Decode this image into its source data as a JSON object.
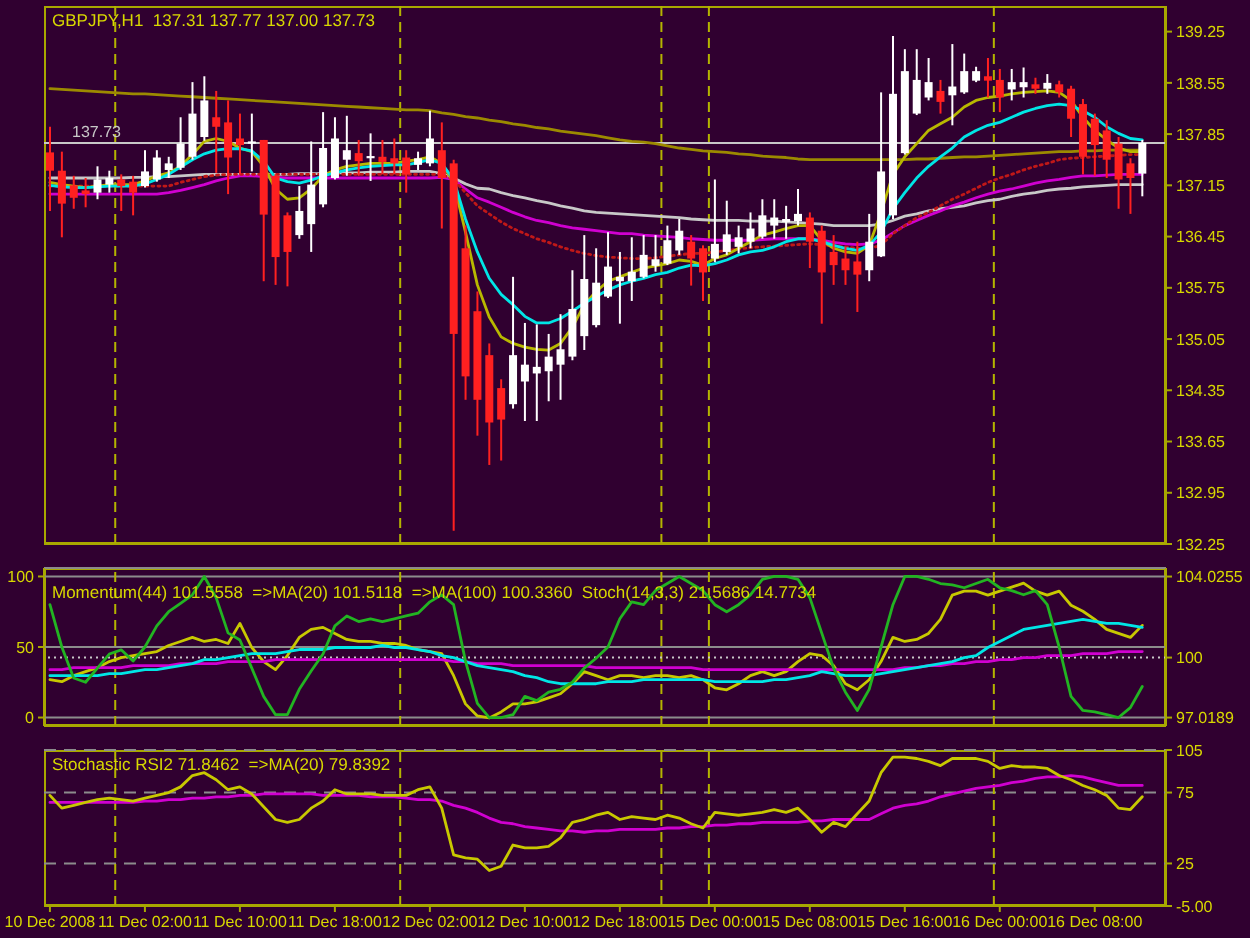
{
  "chart_data": [
    {
      "type": "candlestick",
      "title": "GBPJPY,H1  137.31 137.77 137.00 137.73",
      "tick_labels": "y",
      "categories": [
        null,
        null,
        null,
        null,
        null,
        null,
        null,
        null,
        null,
        null,
        null,
        null,
        null,
        null,
        null,
        null,
        null,
        null,
        null,
        null,
        null,
        null,
        null,
        null,
        null,
        null,
        null,
        null,
        null,
        null,
        null,
        null,
        null,
        null,
        null,
        null,
        null,
        null,
        null,
        null,
        null,
        null,
        null,
        null,
        null,
        null,
        null,
        null,
        null,
        null,
        null,
        null,
        null,
        null,
        null,
        null,
        null,
        null,
        null,
        null,
        null,
        null,
        null,
        null,
        null,
        null,
        null,
        null,
        null,
        null,
        null,
        null,
        null,
        null,
        null,
        null,
        null,
        null,
        null,
        null,
        null,
        null,
        null,
        null,
        null,
        null,
        null,
        null,
        null,
        null,
        null,
        null,
        null
      ],
      "ohlc": [
        [
          137.6,
          137.95,
          136.8,
          137.35
        ],
        [
          137.35,
          137.61,
          136.44,
          136.9
        ],
        [
          137.15,
          137.28,
          136.83,
          136.98
        ],
        [
          137.08,
          137.25,
          136.85,
          137.03
        ],
        [
          137.05,
          137.41,
          136.96,
          137.23
        ],
        [
          137.16,
          137.35,
          137.05,
          137.25
        ],
        [
          137.23,
          137.3,
          136.8,
          137.14
        ],
        [
          137.2,
          137.28,
          136.74,
          137.05
        ],
        [
          137.14,
          137.63,
          137.12,
          137.34
        ],
        [
          137.23,
          137.63,
          137.2,
          137.53
        ],
        [
          137.36,
          137.54,
          137.25,
          137.45
        ],
        [
          137.39,
          138.08,
          137.36,
          137.72
        ],
        [
          137.54,
          138.56,
          137.5,
          138.13
        ],
        [
          137.81,
          138.64,
          137.76,
          138.31
        ],
        [
          138.08,
          138.44,
          137.32,
          137.95
        ],
        [
          138.01,
          138.31,
          137.03,
          137.53
        ],
        [
          137.79,
          138.13,
          137.3,
          137.7
        ],
        [
          137.72,
          138.13,
          137.34,
          137.75
        ],
        [
          137.77,
          137.77,
          135.84,
          136.75
        ],
        [
          137.28,
          137.3,
          135.79,
          136.17
        ],
        [
          136.74,
          136.78,
          135.77,
          136.24
        ],
        [
          136.47,
          137.14,
          136.42,
          136.8
        ],
        [
          136.62,
          137.75,
          136.24,
          137.16
        ],
        [
          136.89,
          138.15,
          136.85,
          137.66
        ],
        [
          137.25,
          138.08,
          137.23,
          137.79
        ],
        [
          137.5,
          138.1,
          137.28,
          137.63
        ],
        [
          137.59,
          137.77,
          137.28,
          137.48
        ],
        [
          137.52,
          137.86,
          137.21,
          137.55
        ],
        [
          137.54,
          137.77,
          137.3,
          137.47
        ],
        [
          137.52,
          137.79,
          137.3,
          137.45
        ],
        [
          137.53,
          137.63,
          137.05,
          137.3
        ],
        [
          137.43,
          137.61,
          137.36,
          137.52
        ],
        [
          137.45,
          138.17,
          137.41,
          137.79
        ],
        [
          137.63,
          138.01,
          136.56,
          137.25
        ],
        [
          137.45,
          137.5,
          132.43,
          135.12
        ],
        [
          136.29,
          136.6,
          134.22,
          134.54
        ],
        [
          135.43,
          135.7,
          133.73,
          134.22
        ],
        [
          134.83,
          134.99,
          133.33,
          133.91
        ],
        [
          134.38,
          134.5,
          133.39,
          133.95
        ],
        [
          134.16,
          135.9,
          134.1,
          134.83
        ],
        [
          134.47,
          135.27,
          133.93,
          134.7
        ],
        [
          134.58,
          135.25,
          133.93,
          134.67
        ],
        [
          134.61,
          135.12,
          134.2,
          134.81
        ],
        [
          134.7,
          135.39,
          134.22,
          134.91
        ],
        [
          134.81,
          135.99,
          134.76,
          135.46
        ],
        [
          135.09,
          136.47,
          134.9,
          135.87
        ],
        [
          135.24,
          136.29,
          135.21,
          135.82
        ],
        [
          135.63,
          136.51,
          135.61,
          136.04
        ],
        [
          135.84,
          136.24,
          135.26,
          135.9
        ],
        [
          135.84,
          136.44,
          135.57,
          135.97
        ],
        [
          135.9,
          136.47,
          135.88,
          136.2
        ],
        [
          136.05,
          136.47,
          135.97,
          136.14
        ],
        [
          136.08,
          136.6,
          136.06,
          136.4
        ],
        [
          136.26,
          136.69,
          136.2,
          136.53
        ],
        [
          136.38,
          136.47,
          135.78,
          136.15
        ],
        [
          136.29,
          136.33,
          135.57,
          135.96
        ],
        [
          136.15,
          137.23,
          136.1,
          136.35
        ],
        [
          136.24,
          136.94,
          136.2,
          136.48
        ],
        [
          136.31,
          136.6,
          136.22,
          136.44
        ],
        [
          136.38,
          136.78,
          136.29,
          136.56
        ],
        [
          136.45,
          136.96,
          136.42,
          136.74
        ],
        [
          136.6,
          136.96,
          136.42,
          136.71
        ],
        [
          136.65,
          136.87,
          136.42,
          136.69
        ],
        [
          136.66,
          137.1,
          136.6,
          136.76
        ],
        [
          136.71,
          136.78,
          136.02,
          136.38
        ],
        [
          136.53,
          136.6,
          135.26,
          135.96
        ],
        [
          136.24,
          136.47,
          135.79,
          136.06
        ],
        [
          136.15,
          136.31,
          135.79,
          135.99
        ],
        [
          136.11,
          136.38,
          135.42,
          135.93
        ],
        [
          135.99,
          136.76,
          135.84,
          136.38
        ],
        [
          136.18,
          138.42,
          136.17,
          137.34
        ],
        [
          136.74,
          139.19,
          136.69,
          138.4
        ],
        [
          137.59,
          139.01,
          137.57,
          138.71
        ],
        [
          138.13,
          139.01,
          138.11,
          138.59
        ],
        [
          138.35,
          138.89,
          138.31,
          138.56
        ],
        [
          138.44,
          138.59,
          138.13,
          138.29
        ],
        [
          138.38,
          139.08,
          137.97,
          138.5
        ],
        [
          138.42,
          138.95,
          138.4,
          138.71
        ],
        [
          138.58,
          138.77,
          138.56,
          138.71
        ],
        [
          138.64,
          138.89,
          138.35,
          138.58
        ],
        [
          138.59,
          138.74,
          138.15,
          138.35
        ],
        [
          138.46,
          138.74,
          138.31,
          138.56
        ],
        [
          138.49,
          138.76,
          138.35,
          138.56
        ],
        [
          138.53,
          138.62,
          138.4,
          138.47
        ],
        [
          138.47,
          138.67,
          138.4,
          138.55
        ],
        [
          138.53,
          138.58,
          138.35,
          138.42
        ],
        [
          138.47,
          138.51,
          137.81,
          138.06
        ],
        [
          138.26,
          138.33,
          137.3,
          137.54
        ],
        [
          138.06,
          138.13,
          137.28,
          137.7
        ],
        [
          137.9,
          138.04,
          137.25,
          137.5
        ],
        [
          137.72,
          137.81,
          136.83,
          137.23
        ],
        [
          137.45,
          137.52,
          136.76,
          137.25
        ],
        [
          137.31,
          137.77,
          137.0,
          137.73
        ]
      ],
      "colors": [
        "#ff2020",
        "#ff2020",
        "#ff2020",
        "#ff2020",
        "#ffffff",
        "#ffffff",
        "#ff2020",
        "#ff2020",
        "#ffffff",
        "#ffffff",
        "#ffffff",
        "#ffffff",
        "#ffffff",
        "#ffffff",
        "#ff2020",
        "#ff2020",
        "#ff2020",
        "#ffffff",
        "#ff2020",
        "#ff2020",
        "#ff2020",
        "#ffffff",
        "#ffffff",
        "#ffffff",
        "#ffffff",
        "#ffffff",
        "#ff2020",
        "#ffffff",
        "#ff2020",
        "#ff2020",
        "#ff2020",
        "#ffffff",
        "#ffffff",
        "#ff2020",
        "#ff2020",
        "#ff2020",
        "#ff2020",
        "#ff2020",
        "#ff2020",
        "#ffffff",
        "#ffffff",
        "#ffffff",
        "#ffffff",
        "#ffffff",
        "#ffffff",
        "#ffffff",
        "#ffffff",
        "#ffffff",
        "#ffffff",
        "#ffffff",
        "#ffffff",
        "#ffffff",
        "#ffffff",
        "#ffffff",
        "#ff2020",
        "#ff2020",
        "#ffffff",
        "#ffffff",
        "#ffffff",
        "#ffffff",
        "#ffffff",
        "#ffffff",
        "#ffffff",
        "#ffffff",
        "#ff2020",
        "#ff2020",
        "#ff2020",
        "#ff2020",
        "#ff2020",
        "#ffffff",
        "#ffffff",
        "#ffffff",
        "#ffffff",
        "#ffffff",
        "#ffffff",
        "#ff2020",
        "#ffffff",
        "#ffffff",
        "#ffffff",
        "#ff2020",
        "#ff2020",
        "#ffffff",
        "#ffffff",
        "#ff2020",
        "#ffffff",
        "#ff2020",
        "#ff2020",
        "#ff2020",
        "#ff2020",
        "#ff2020",
        "#ff2020",
        "#ff2020",
        "#ffffff"
      ],
      "series": [
        {
          "type": "line",
          "color": "#9c8a00",
          "values": [
            138.47,
            138.46,
            138.45,
            138.44,
            138.43,
            138.42,
            138.41,
            138.4,
            138.4,
            138.39,
            138.38,
            138.37,
            138.36,
            138.35,
            138.34,
            138.33,
            138.32,
            138.31,
            138.3,
            138.29,
            138.28,
            138.27,
            138.26,
            138.25,
            138.24,
            138.23,
            138.22,
            138.21,
            138.2,
            138.19,
            138.18,
            138.18,
            138.17,
            138.14,
            138.12,
            138.09,
            138.07,
            138.04,
            138.02,
            137.99,
            137.97,
            137.94,
            137.92,
            137.89,
            137.87,
            137.85,
            137.83,
            137.8,
            137.77,
            137.75,
            137.74,
            137.72,
            137.69,
            137.66,
            137.64,
            137.62,
            137.61,
            137.6,
            137.58,
            137.57,
            137.55,
            137.54,
            137.53,
            137.51,
            137.5,
            137.5,
            137.5,
            137.5,
            137.5,
            137.5,
            137.5,
            137.5,
            137.5,
            137.51,
            137.51,
            137.52,
            137.53,
            137.54,
            137.54,
            137.55,
            137.56,
            137.57,
            137.58,
            137.59,
            137.6,
            137.61,
            137.61,
            137.62,
            137.62,
            137.63,
            137.63,
            137.63,
            137.63
          ]
        },
        {
          "type": "line",
          "color": "#c8c8c8",
          "values": [
            137.25,
            137.25,
            137.25,
            137.25,
            137.25,
            137.25,
            137.25,
            137.26,
            137.26,
            137.27,
            137.27,
            137.28,
            137.29,
            137.3,
            137.3,
            137.3,
            137.3,
            137.3,
            137.3,
            137.3,
            137.3,
            137.31,
            137.31,
            137.31,
            137.32,
            137.32,
            137.32,
            137.33,
            137.33,
            137.33,
            137.34,
            137.34,
            137.34,
            137.31,
            137.25,
            137.17,
            137.11,
            137.1,
            137.05,
            137.01,
            136.98,
            136.94,
            136.91,
            136.87,
            136.84,
            136.8,
            136.78,
            136.77,
            136.76,
            136.75,
            136.74,
            136.73,
            136.72,
            136.71,
            136.69,
            136.68,
            136.67,
            136.67,
            136.67,
            136.66,
            136.66,
            136.66,
            136.65,
            136.64,
            136.63,
            136.62,
            136.6,
            136.6,
            136.6,
            136.6,
            136.62,
            136.67,
            136.73,
            136.76,
            136.8,
            136.83,
            136.85,
            136.87,
            136.91,
            136.94,
            136.96,
            137.0,
            137.03,
            137.05,
            137.08,
            137.1,
            137.11,
            137.13,
            137.14,
            137.15,
            137.16,
            137.16,
            137.16
          ]
        },
        {
          "type": "line",
          "color": "#d000d0",
          "values": [
            137.03,
            137.03,
            137.03,
            137.03,
            137.03,
            137.03,
            137.03,
            137.03,
            137.03,
            137.03,
            137.05,
            137.08,
            137.12,
            137.16,
            137.21,
            137.25,
            137.28,
            137.28,
            137.27,
            137.26,
            137.25,
            137.25,
            137.25,
            137.25,
            137.25,
            137.25,
            137.25,
            137.25,
            137.25,
            137.25,
            137.25,
            137.25,
            137.25,
            137.26,
            137.23,
            137.1,
            136.98,
            136.92,
            136.85,
            136.78,
            136.72,
            136.67,
            136.64,
            136.6,
            136.57,
            136.55,
            136.53,
            136.51,
            136.49,
            136.49,
            136.47,
            136.46,
            136.45,
            136.44,
            136.42,
            136.41,
            136.4,
            136.4,
            136.4,
            136.4,
            136.41,
            136.42,
            136.42,
            136.42,
            136.42,
            136.4,
            136.37,
            136.35,
            136.34,
            136.35,
            136.4,
            136.5,
            136.6,
            136.67,
            136.74,
            136.8,
            136.87,
            136.92,
            136.98,
            137.03,
            137.07,
            137.1,
            137.14,
            137.18,
            137.21,
            137.23,
            137.26,
            137.28,
            137.28,
            137.29,
            137.3,
            137.3,
            137.3
          ]
        },
        {
          "type": "line",
          "color": "#c01818",
          "line_style": "dotted",
          "values": [
            137.14,
            137.14,
            137.14,
            137.14,
            137.14,
            137.14,
            137.14,
            137.14,
            137.14,
            137.14,
            137.14,
            137.19,
            137.23,
            137.27,
            137.29,
            137.3,
            137.3,
            137.3,
            137.3,
            137.3,
            137.3,
            137.3,
            137.3,
            137.3,
            137.3,
            137.3,
            137.3,
            137.3,
            137.3,
            137.3,
            137.3,
            137.3,
            137.3,
            137.3,
            137.23,
            137.05,
            136.87,
            136.76,
            136.65,
            136.56,
            136.49,
            136.42,
            136.37,
            136.31,
            136.26,
            136.22,
            136.19,
            136.17,
            136.16,
            136.15,
            136.15,
            136.16,
            136.18,
            136.2,
            136.22,
            136.22,
            136.24,
            136.26,
            136.28,
            136.3,
            136.31,
            136.32,
            136.33,
            136.34,
            136.35,
            136.34,
            136.32,
            136.31,
            136.29,
            136.29,
            136.33,
            136.49,
            136.6,
            136.71,
            136.78,
            136.87,
            136.96,
            137.03,
            137.11,
            137.19,
            137.25,
            137.3,
            137.36,
            137.41,
            137.45,
            137.5,
            137.52,
            137.53,
            137.54,
            137.55,
            137.56,
            137.57,
            137.57
          ]
        },
        {
          "type": "line",
          "color": "#b8b800",
          "values": [
            137.19,
            137.16,
            137.14,
            137.12,
            137.14,
            137.16,
            137.16,
            137.16,
            137.21,
            137.28,
            137.32,
            137.41,
            137.57,
            137.75,
            137.79,
            137.75,
            137.66,
            137.61,
            137.41,
            137.1,
            136.96,
            136.98,
            137.1,
            137.28,
            137.36,
            137.41,
            137.43,
            137.45,
            137.45,
            137.45,
            137.48,
            137.5,
            137.54,
            137.45,
            137.19,
            136.51,
            135.79,
            135.35,
            135.08,
            134.99,
            134.94,
            134.91,
            134.9,
            134.99,
            135.21,
            135.52,
            135.7,
            135.84,
            135.9,
            135.96,
            136.02,
            136.05,
            136.08,
            136.13,
            136.11,
            136.06,
            136.15,
            136.2,
            136.29,
            136.38,
            136.47,
            136.51,
            136.56,
            136.6,
            136.6,
            136.4,
            136.29,
            136.24,
            136.22,
            136.33,
            136.78,
            137.3,
            137.54,
            137.72,
            137.9,
            137.99,
            138.08,
            138.22,
            138.31,
            138.35,
            138.37,
            138.4,
            138.42,
            138.43,
            138.44,
            138.42,
            138.31,
            138.08,
            137.9,
            137.77,
            137.66,
            137.61,
            137.61
          ]
        },
        {
          "type": "line",
          "color": "#00e6e6",
          "values": [
            137.15,
            137.13,
            137.12,
            137.12,
            137.13,
            137.14,
            137.14,
            137.14,
            137.17,
            137.23,
            137.3,
            137.4,
            137.5,
            137.58,
            137.63,
            137.65,
            137.65,
            137.62,
            137.48,
            137.25,
            137.2,
            137.18,
            137.22,
            137.28,
            137.32,
            137.36,
            137.39,
            137.41,
            137.42,
            137.43,
            137.43,
            137.46,
            137.5,
            137.45,
            137.23,
            136.69,
            136.24,
            135.88,
            135.66,
            135.52,
            135.36,
            135.27,
            135.27,
            135.33,
            135.43,
            135.54,
            135.63,
            135.72,
            135.79,
            135.84,
            135.88,
            135.93,
            135.96,
            136.02,
            136.06,
            136.05,
            136.08,
            136.13,
            136.2,
            136.24,
            136.26,
            136.31,
            136.38,
            136.42,
            136.42,
            136.38,
            136.33,
            136.29,
            136.26,
            136.33,
            136.51,
            136.83,
            137.05,
            137.25,
            137.41,
            137.54,
            137.66,
            137.81,
            137.9,
            137.97,
            138.01,
            138.08,
            138.15,
            138.2,
            138.24,
            138.26,
            138.24,
            138.17,
            138.08,
            137.95,
            137.86,
            137.79,
            137.77
          ]
        }
      ],
      "ylim": [
        132.25,
        139.6
      ],
      "yticks": [
        132.25,
        132.95,
        133.65,
        134.35,
        135.05,
        135.75,
        136.45,
        137.15,
        137.85,
        138.55,
        139.25
      ],
      "ref_lines": [
        {
          "axis": "y",
          "value": 137.73,
          "label": "137.73",
          "color": "#c8c8c8"
        }
      ]
    },
    {
      "type": "line",
      "title": "Momentum(44) 101.5558  =>MA(20) 101.5118  =>MA(100) 100.3360  Stoch(14,3,3) 21.5686 14.7734",
      "tick_labels": "y",
      "grid": "y",
      "categories": [
        null,
        null,
        null,
        null,
        null,
        null,
        null,
        null,
        null,
        null,
        null,
        null,
        null,
        null,
        null,
        null,
        null,
        null,
        null,
        null,
        null,
        null,
        null,
        null,
        null,
        null,
        null,
        null,
        null,
        null,
        null,
        null,
        null,
        null,
        null,
        null,
        null,
        null,
        null,
        null,
        null,
        null,
        null,
        null,
        null,
        null,
        null,
        null,
        null,
        null,
        null,
        null,
        null,
        null,
        null,
        null,
        null,
        null,
        null,
        null,
        null,
        null,
        null,
        null,
        null,
        null,
        null,
        null,
        null,
        null,
        null,
        null,
        null,
        null,
        null,
        null,
        null,
        null,
        null,
        null,
        null,
        null,
        null,
        null,
        null,
        null,
        null,
        null,
        null,
        null,
        null,
        null,
        null
      ],
      "series": [
        {
          "color": "#c8c800",
          "axis": "y2",
          "values": [
            98.9,
            98.8,
            99.1,
            99.3,
            99.5,
            99.8,
            100.0,
            100.1,
            100.2,
            100.3,
            100.6,
            100.8,
            101.0,
            100.8,
            100.9,
            100.7,
            101.7,
            100.5,
            99.8,
            99.4,
            100.1,
            101.0,
            101.4,
            101.5,
            101.2,
            100.9,
            100.8,
            100.8,
            100.7,
            100.7,
            100.6,
            100.4,
            100.3,
            100.2,
            99.1,
            97.7,
            97.1,
            97.0,
            97.3,
            97.7,
            97.7,
            97.8,
            98.0,
            98.2,
            98.7,
            99.3,
            99.1,
            98.9,
            99.1,
            99.1,
            99.0,
            99.1,
            99.1,
            99.0,
            99.1,
            98.9,
            98.5,
            98.4,
            98.7,
            99.1,
            99.3,
            99.1,
            99.3,
            99.8,
            100.2,
            100.1,
            99.6,
            98.7,
            98.4,
            98.9,
            99.8,
            101.0,
            100.8,
            100.9,
            101.2,
            101.9,
            103.1,
            103.3,
            103.3,
            103.1,
            103.3,
            103.5,
            103.7,
            103.3,
            103.1,
            103.3,
            102.6,
            102.3,
            101.9,
            101.4,
            101.2,
            101.0,
            101.6
          ]
        },
        {
          "color": "#d000d0",
          "axis": "y2",
          "values": [
            99.4,
            99.4,
            99.5,
            99.5,
            99.5,
            99.5,
            99.5,
            99.6,
            99.6,
            99.6,
            99.6,
            99.7,
            99.7,
            99.7,
            99.7,
            99.8,
            99.8,
            99.8,
            99.8,
            99.9,
            99.9,
            99.9,
            99.9,
            99.9,
            99.9,
            99.9,
            99.9,
            99.9,
            99.9,
            99.9,
            99.9,
            99.9,
            99.9,
            99.9,
            99.8,
            99.8,
            99.7,
            99.7,
            99.7,
            99.6,
            99.6,
            99.6,
            99.6,
            99.6,
            99.6,
            99.6,
            99.5,
            99.5,
            99.5,
            99.5,
            99.5,
            99.5,
            99.5,
            99.5,
            99.5,
            99.4,
            99.4,
            99.4,
            99.4,
            99.4,
            99.4,
            99.4,
            99.4,
            99.4,
            99.4,
            99.4,
            99.4,
            99.4,
            99.4,
            99.4,
            99.4,
            99.4,
            99.5,
            99.5,
            99.6,
            99.6,
            99.7,
            99.7,
            99.8,
            99.8,
            99.9,
            99.9,
            100.0,
            100.0,
            100.1,
            100.1,
            100.1,
            100.2,
            100.2,
            100.2,
            100.3,
            100.3,
            100.3
          ]
        },
        {
          "color": "#00e6e6",
          "axis": "y2",
          "values": [
            99.1,
            99.1,
            99.1,
            99.1,
            99.1,
            99.2,
            99.2,
            99.3,
            99.4,
            99.4,
            99.5,
            99.6,
            99.7,
            99.9,
            99.9,
            100.0,
            100.1,
            100.2,
            100.2,
            100.2,
            100.3,
            100.4,
            100.4,
            100.4,
            100.5,
            100.5,
            100.5,
            100.5,
            100.6,
            100.5,
            100.5,
            100.4,
            100.3,
            100.1,
            100.0,
            99.8,
            99.6,
            99.5,
            99.4,
            99.3,
            99.1,
            99.0,
            98.8,
            98.7,
            98.7,
            98.7,
            98.7,
            98.8,
            98.8,
            98.8,
            98.9,
            98.9,
            98.9,
            98.9,
            98.9,
            98.9,
            98.8,
            98.8,
            98.8,
            98.8,
            98.8,
            98.9,
            98.9,
            99.0,
            99.1,
            99.3,
            99.2,
            99.1,
            99.1,
            99.1,
            99.2,
            99.3,
            99.4,
            99.5,
            99.6,
            99.7,
            99.8,
            100.0,
            100.1,
            100.5,
            100.8,
            101.1,
            101.4,
            101.5,
            101.6,
            101.7,
            101.8,
            101.9,
            101.8,
            101.7,
            101.7,
            101.6,
            101.5
          ]
        },
        {
          "color": "#22b422",
          "values": [
            80,
            50,
            28,
            25,
            35,
            45,
            48,
            40,
            50,
            65,
            75,
            81,
            87,
            100,
            85,
            60,
            55,
            35,
            15,
            2,
            2,
            20,
            33,
            45,
            65,
            72,
            68,
            70,
            68,
            70,
            72,
            74,
            82,
            87,
            80,
            40,
            10,
            0,
            0,
            2,
            15,
            12,
            18,
            20,
            25,
            35,
            42,
            50,
            70,
            82,
            80,
            90,
            95,
            100,
            95,
            90,
            80,
            75,
            80,
            87,
            98,
            100,
            100,
            98,
            85,
            60,
            35,
            18,
            5,
            20,
            50,
            80,
            100,
            100,
            98,
            95,
            94,
            92,
            95,
            98,
            92,
            90,
            87,
            90,
            80,
            50,
            15,
            5,
            4,
            2,
            0,
            7,
            22
          ]
        }
      ],
      "ylim": [
        -6,
        106
      ],
      "yticks": [
        0,
        50,
        100
      ],
      "y2lim": [
        96.6,
        104.45
      ],
      "y2ticks": [
        97.0189,
        100,
        104.0255
      ],
      "ref_lines": [
        {
          "axis": "y2",
          "value": 100,
          "color": "#c8c8c8",
          "line_style": "dotted"
        }
      ]
    },
    {
      "type": "line",
      "title": "Stochastic RSI2 71.8462  =>MA(20) 79.8392",
      "grid": "y",
      "categories": [
        "10 Dec 2008",
        null,
        null,
        null,
        null,
        null,
        null,
        null,
        "11 Dec 02:00",
        null,
        null,
        null,
        null,
        null,
        null,
        null,
        "11 Dec 10:00",
        null,
        null,
        null,
        null,
        null,
        null,
        null,
        "11 Dec 18:00",
        null,
        null,
        null,
        null,
        null,
        null,
        null,
        "12 Dec 02:00",
        null,
        null,
        null,
        null,
        null,
        null,
        null,
        "12 Dec 10:00",
        null,
        null,
        null,
        null,
        null,
        null,
        null,
        "12 Dec 18:00",
        null,
        null,
        null,
        null,
        null,
        null,
        null,
        "15 Dec 00:00",
        null,
        null,
        null,
        null,
        null,
        null,
        null,
        "15 Dec 08:00",
        null,
        null,
        null,
        null,
        null,
        null,
        null,
        "15 Dec 16:00",
        null,
        null,
        null,
        null,
        null,
        null,
        null,
        "16 Dec 00:00",
        null,
        null,
        null,
        null,
        null,
        null,
        null,
        "16 Dec 08:00",
        null,
        null,
        null,
        null
      ],
      "series": [
        {
          "color": "#d000d0",
          "values": [
            68,
            68,
            68,
            68,
            68,
            68,
            68,
            68,
            69,
            69,
            70,
            70,
            71,
            71,
            72,
            72,
            73,
            73,
            74,
            74,
            74,
            74,
            74,
            73,
            73,
            73,
            73,
            72,
            72,
            72,
            71,
            70,
            70,
            69,
            66,
            64,
            61,
            57,
            54,
            53,
            51,
            50,
            49,
            48,
            48,
            47,
            48,
            48,
            49,
            49,
            49,
            49,
            50,
            50,
            51,
            51,
            52,
            52,
            53,
            53,
            54,
            54,
            54,
            54,
            55,
            55,
            56,
            56,
            56,
            56,
            60,
            64,
            66,
            67,
            69,
            72,
            74,
            76,
            78,
            79,
            80,
            82,
            83,
            85,
            86,
            86,
            87,
            86,
            84,
            82,
            80,
            80,
            80
          ]
        },
        {
          "color": "#c8c800",
          "values": [
            73,
            64,
            66,
            68,
            70,
            71,
            70,
            69,
            71,
            73,
            75,
            79,
            87,
            89,
            84,
            77,
            79,
            74,
            65,
            56,
            54,
            56,
            64,
            69,
            77,
            74,
            74,
            74,
            73,
            73,
            73,
            77,
            79,
            64,
            31,
            29,
            28,
            20,
            23,
            38,
            36,
            36,
            37,
            43,
            54,
            56,
            59,
            61,
            56,
            58,
            57,
            56,
            59,
            57,
            53,
            50,
            61,
            60,
            59,
            60,
            61,
            63,
            61,
            64,
            56,
            47,
            54,
            51,
            60,
            69,
            89,
            100,
            100,
            99,
            97,
            94,
            99,
            99,
            99,
            97,
            92,
            94,
            93,
            93,
            92,
            87,
            84,
            80,
            77,
            73,
            64,
            63,
            72
          ]
        }
      ],
      "ylim": [
        -5,
        105
      ],
      "yticks": [
        {
          "value": -5,
          "label": "-5.00"
        },
        25,
        75,
        105
      ]
    }
  ]
}
